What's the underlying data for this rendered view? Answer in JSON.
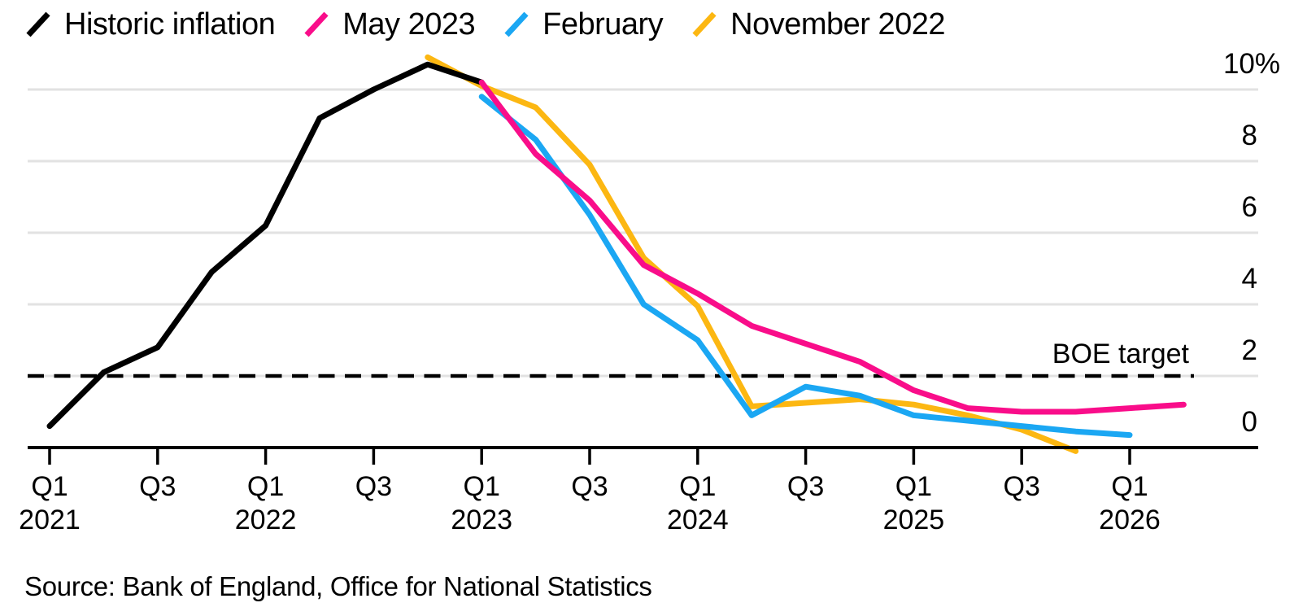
{
  "source": {
    "text": "Source: Bank of England, Office for National Statistics"
  },
  "chart_data": {
    "type": "line",
    "title": "",
    "x_quarters": [
      "Q1 2021",
      "Q2 2021",
      "Q3 2021",
      "Q4 2021",
      "Q1 2022",
      "Q2 2022",
      "Q3 2022",
      "Q4 2022",
      "Q1 2023",
      "Q2 2023",
      "Q3 2023",
      "Q4 2023",
      "Q1 2024",
      "Q2 2024",
      "Q3 2024",
      "Q4 2024",
      "Q1 2025",
      "Q2 2025",
      "Q3 2025",
      "Q4 2025",
      "Q1 2026",
      "Q2 2026"
    ],
    "ylabel": "%",
    "ylim": [
      -0.6,
      11.2
    ],
    "grid": "horizontal",
    "legend_position": "top-left",
    "series": [
      {
        "id": "historic",
        "name": "Historic inflation",
        "color": "#000000",
        "start_index": 0,
        "values": [
          0.6,
          2.1,
          2.8,
          4.9,
          6.2,
          9.2,
          10.0,
          10.7,
          10.2
        ]
      },
      {
        "id": "may_2023",
        "name": "May 2023",
        "color": "#f90d8a",
        "start_index": 8,
        "values": [
          10.2,
          8.2,
          6.9,
          5.1,
          4.3,
          3.4,
          2.9,
          2.4,
          1.6,
          1.1,
          1.0,
          1.0,
          1.1,
          1.2
        ]
      },
      {
        "id": "february",
        "name": "February",
        "color": "#1ba7f3",
        "start_index": 8,
        "values": [
          9.8,
          8.6,
          6.5,
          4.0,
          3.0,
          0.9,
          1.7,
          1.45,
          0.9,
          0.75,
          0.6,
          0.45,
          0.35
        ]
      },
      {
        "id": "november_2022",
        "name": "November 2022",
        "color": "#fcb712",
        "start_index": 7,
        "values": [
          10.9,
          10.1,
          9.5,
          7.9,
          5.3,
          3.95,
          1.15,
          1.25,
          1.35,
          1.2,
          0.9,
          0.5,
          -0.1
        ]
      }
    ],
    "draw_order": [
      "november_2022",
      "historic",
      "february",
      "may_2023"
    ],
    "target_line": {
      "label": "BOE target",
      "value": 2
    },
    "gridline_values": [
      2,
      4,
      6,
      8,
      10
    ],
    "yaxis": {
      "ticks": [
        {
          "value": 0,
          "label": "0"
        },
        {
          "value": 2,
          "label": "2"
        },
        {
          "value": 4,
          "label": "4"
        },
        {
          "value": 6,
          "label": "6"
        },
        {
          "value": 8,
          "label": "8"
        },
        {
          "value": 10,
          "label": "10%"
        }
      ]
    },
    "xaxis": {
      "ticks": [
        {
          "index": 0,
          "quarter": "Q1",
          "year": "2021"
        },
        {
          "index": 2,
          "quarter": "Q3"
        },
        {
          "index": 4,
          "quarter": "Q1",
          "year": "2022"
        },
        {
          "index": 6,
          "quarter": "Q3"
        },
        {
          "index": 8,
          "quarter": "Q1",
          "year": "2023"
        },
        {
          "index": 10,
          "quarter": "Q3"
        },
        {
          "index": 12,
          "quarter": "Q1",
          "year": "2024"
        },
        {
          "index": 14,
          "quarter": "Q3"
        },
        {
          "index": 16,
          "quarter": "Q1",
          "year": "2025"
        },
        {
          "index": 18,
          "quarter": "Q3"
        },
        {
          "index": 20,
          "quarter": "Q1",
          "year": "2026"
        }
      ]
    },
    "colors": {
      "gridline": "#e2e2e2",
      "axis": "#000000",
      "text": "#000000"
    }
  }
}
